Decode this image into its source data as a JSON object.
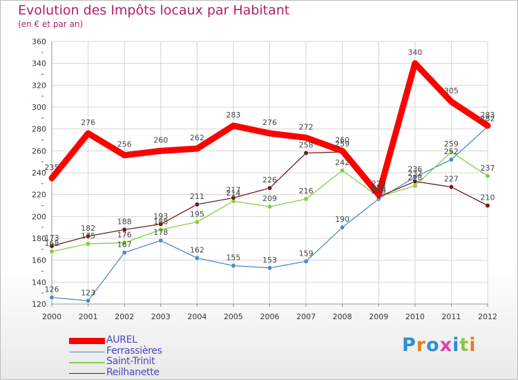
{
  "brand": {
    "logo": "Proxiti",
    "logo_letter_colors": [
      "#2a8fd8",
      "#e67e22",
      "#2a8fd8",
      "#e63cb8",
      "#2a8fd8",
      "#8cc63f",
      "#e67e22"
    ]
  },
  "chart_data": {
    "type": "line",
    "title": "Evolution des Impôts locaux par Habitant",
    "subtitle": "(en € et par an)",
    "xlabel": "",
    "ylabel": "",
    "ylim": [
      120,
      360
    ],
    "yticks": [
      120,
      140,
      160,
      180,
      200,
      220,
      240,
      260,
      280,
      300,
      320,
      340,
      360
    ],
    "grid": true,
    "categories": [
      "2000",
      "2001",
      "2002",
      "2003",
      "2004",
      "2005",
      "2006",
      "2007",
      "2008",
      "2009",
      "2010",
      "2011",
      "2012"
    ],
    "series": [
      {
        "name": "Ferrassières",
        "color": "#4a8cc8",
        "values": [
          126,
          123,
          167,
          178,
          162,
          155,
          153,
          159,
          190,
          216,
          236,
          252,
          282
        ]
      },
      {
        "name": "Saint-Trinit",
        "color": "#80d040",
        "values": [
          168,
          175,
          176,
          188,
          195,
          214,
          209,
          216,
          242,
          218,
          228,
          259,
          237
        ]
      },
      {
        "name": "Reilhanette",
        "color": "#701818",
        "values": [
          173,
          182,
          188,
          193,
          211,
          217,
          226,
          258,
          259,
          218,
          232,
          227,
          210
        ]
      },
      {
        "name": "AUREL",
        "color": "#ff0000",
        "values": [
          235,
          276,
          256,
          260,
          262,
          283,
          276,
          272,
          260,
          220,
          340,
          305,
          283
        ]
      }
    ],
    "legend": {
      "position": "bottom-left",
      "order": [
        "AUREL",
        "Ferrassières",
        "Saint-Trinit",
        "Reilhanette"
      ]
    }
  }
}
